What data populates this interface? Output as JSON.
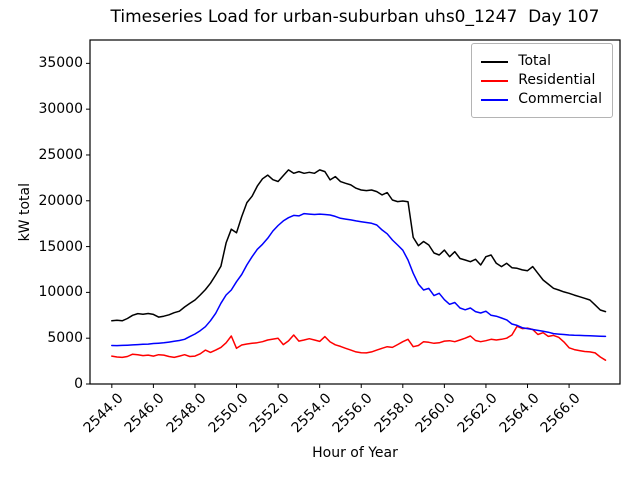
{
  "chart_data": {
    "type": "line",
    "title": "Timeseries Load for urban-suburban uhs0_1247  Day 107",
    "xlabel": "Hour of Year",
    "ylabel": "kW total",
    "grid": false,
    "legend_position": "upper right",
    "xlim": [
      2542.95,
      2568.45
    ],
    "ylim": [
      0,
      37550
    ],
    "x_ticks": {
      "values": [
        2544,
        2546,
        2548,
        2550,
        2552,
        2554,
        2556,
        2558,
        2560,
        2562,
        2564,
        2566
      ],
      "labels": [
        "2544.0",
        "2546.0",
        "2548.0",
        "2550.0",
        "2552.0",
        "2554.0",
        "2556.0",
        "2558.0",
        "2560.0",
        "2562.0",
        "2564.0",
        "2566.0"
      ]
    },
    "y_ticks": {
      "values": [
        0,
        5000,
        10000,
        15000,
        20000,
        25000,
        30000,
        35000
      ],
      "labels": [
        "0",
        "5000",
        "10000",
        "15000",
        "20000",
        "25000",
        "30000",
        "35000"
      ]
    },
    "x_start": 2544.0,
    "x_step": 0.25,
    "x_count": 96,
    "series": [
      {
        "name": "Total",
        "color": "#000000",
        "values": [
          6900,
          6950,
          6900,
          7150,
          7500,
          7680,
          7620,
          7700,
          7600,
          7300,
          7400,
          7550,
          7780,
          7950,
          8400,
          8800,
          9170,
          9720,
          10300,
          11000,
          11900,
          12850,
          15400,
          16900,
          16500,
          18270,
          19800,
          20500,
          21600,
          22400,
          22800,
          22300,
          22100,
          22750,
          23370,
          23000,
          23180,
          23000,
          23110,
          23000,
          23370,
          23180,
          22280,
          22640,
          22090,
          21910,
          21730,
          21370,
          21180,
          21110,
          21180,
          21000,
          20640,
          20890,
          20090,
          19910,
          19980,
          19900,
          16000,
          15100,
          15550,
          15170,
          14300,
          14080,
          14620,
          13900,
          14440,
          13700,
          13540,
          13350,
          13610,
          12990,
          13900,
          14080,
          13170,
          12810,
          13170,
          12700,
          12630,
          12450,
          12370,
          12810,
          12080,
          11350,
          10900,
          10450,
          10260,
          10050,
          9900,
          9700,
          9530,
          9350,
          9170,
          8630,
          8080,
          7900
        ]
      },
      {
        "name": "Residential",
        "color": "#ff0000",
        "values": [
          3050,
          2950,
          2900,
          3000,
          3250,
          3200,
          3100,
          3150,
          3050,
          3200,
          3150,
          3000,
          2900,
          3050,
          3200,
          3000,
          3050,
          3300,
          3700,
          3450,
          3700,
          4000,
          4500,
          5240,
          3900,
          4260,
          4370,
          4440,
          4510,
          4620,
          4800,
          4900,
          4990,
          4300,
          4700,
          5350,
          4680,
          4800,
          4950,
          4800,
          4650,
          5170,
          4600,
          4280,
          4100,
          3900,
          3700,
          3500,
          3420,
          3400,
          3500,
          3700,
          3900,
          4070,
          4000,
          4300,
          4620,
          4880,
          4070,
          4200,
          4620,
          4550,
          4440,
          4500,
          4680,
          4730,
          4620,
          4800,
          5000,
          5240,
          4750,
          4620,
          4730,
          4880,
          4800,
          4880,
          5000,
          5350,
          6300,
          6050,
          6100,
          5950,
          5400,
          5600,
          5200,
          5300,
          5100,
          4600,
          3950,
          3750,
          3650,
          3550,
          3500,
          3400,
          2950,
          2600
        ]
      },
      {
        "name": "Commercial",
        "color": "#0000ff",
        "values": [
          4200,
          4190,
          4210,
          4240,
          4270,
          4300,
          4330,
          4360,
          4420,
          4450,
          4500,
          4570,
          4660,
          4750,
          4880,
          5170,
          5460,
          5820,
          6260,
          6910,
          7720,
          8810,
          9720,
          10260,
          11170,
          11950,
          13000,
          13900,
          14700,
          15250,
          15900,
          16700,
          17300,
          17800,
          18150,
          18400,
          18350,
          18600,
          18550,
          18500,
          18550,
          18500,
          18450,
          18300,
          18090,
          18000,
          17910,
          17800,
          17720,
          17630,
          17540,
          17360,
          16820,
          16400,
          15720,
          15170,
          14600,
          13540,
          12100,
          10900,
          10260,
          10440,
          9650,
          9900,
          9200,
          8700,
          8900,
          8300,
          8100,
          8300,
          7900,
          7750,
          7950,
          7500,
          7400,
          7200,
          7000,
          6550,
          6400,
          6150,
          6050,
          5950,
          5850,
          5750,
          5650,
          5500,
          5450,
          5400,
          5350,
          5320,
          5300,
          5280,
          5260,
          5240,
          5220,
          5200
        ]
      }
    ]
  }
}
